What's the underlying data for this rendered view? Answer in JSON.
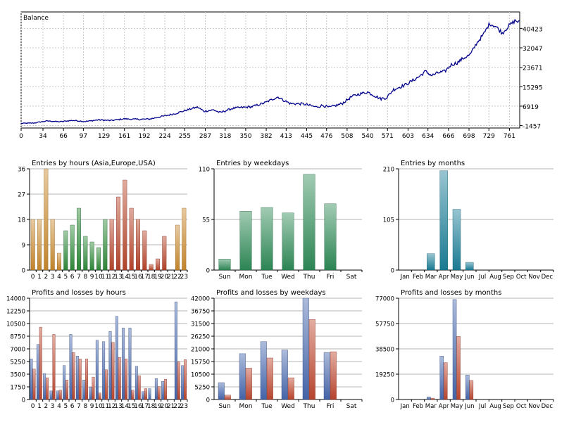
{
  "chart_data": [
    {
      "type": "line",
      "title": "Balance",
      "x_ticks": [
        0,
        34,
        66,
        97,
        129,
        161,
        192,
        224,
        255,
        287,
        318,
        350,
        382,
        413,
        445,
        476,
        508,
        540,
        571,
        603,
        634,
        666,
        698,
        729,
        761
      ],
      "y_ticks": [
        -1457,
        6919,
        15295,
        23671,
        32047,
        40423
      ],
      "xlim": [
        0,
        777
      ],
      "ylim": [
        -2500,
        47500
      ],
      "axis_position": "right",
      "grid": true,
      "color": "#00008b",
      "anchors": [
        [
          0,
          -500
        ],
        [
          20,
          -350
        ],
        [
          40,
          550
        ],
        [
          60,
          200
        ],
        [
          80,
          780
        ],
        [
          100,
          300
        ],
        [
          120,
          1000
        ],
        [
          140,
          700
        ],
        [
          160,
          1450
        ],
        [
          180,
          1220
        ],
        [
          200,
          1350
        ],
        [
          220,
          2500
        ],
        [
          240,
          3700
        ],
        [
          265,
          5800
        ],
        [
          275,
          6500
        ],
        [
          285,
          4700
        ],
        [
          300,
          5300
        ],
        [
          310,
          4100
        ],
        [
          330,
          6000
        ],
        [
          360,
          6700
        ],
        [
          380,
          8400
        ],
        [
          400,
          10900
        ],
        [
          410,
          9300
        ],
        [
          420,
          8000
        ],
        [
          440,
          7900
        ],
        [
          460,
          6500
        ],
        [
          470,
          7300
        ],
        [
          480,
          6300
        ],
        [
          500,
          8000
        ],
        [
          515,
          11000
        ],
        [
          525,
          12000
        ],
        [
          540,
          13000
        ],
        [
          560,
          10100
        ],
        [
          570,
          10600
        ],
        [
          580,
          14000
        ],
        [
          600,
          16300
        ],
        [
          610,
          17900
        ],
        [
          620,
          19600
        ],
        [
          630,
          21900
        ],
        [
          640,
          20100
        ],
        [
          650,
          21300
        ],
        [
          660,
          21800
        ],
        [
          670,
          24700
        ],
        [
          680,
          25700
        ],
        [
          690,
          27700
        ],
        [
          700,
          29100
        ],
        [
          710,
          34100
        ],
        [
          720,
          37600
        ],
        [
          730,
          42500
        ],
        [
          740,
          41200
        ],
        [
          750,
          38400
        ],
        [
          760,
          41500
        ],
        [
          770,
          43800
        ],
        [
          777,
          43000
        ]
      ]
    },
    {
      "type": "bar",
      "title": "Entries by hours (Asia,Europe,USA)",
      "categories": [
        "0",
        "1",
        "2",
        "3",
        "4",
        "5",
        "6",
        "7",
        "8",
        "9",
        "10",
        "11",
        "12",
        "13",
        "14",
        "15",
        "16",
        "17",
        "18",
        "19",
        "20",
        "21",
        "22",
        "23"
      ],
      "values": [
        18,
        18,
        36,
        18,
        6,
        14,
        16,
        22,
        12,
        10,
        8,
        18,
        18,
        26,
        32,
        22,
        18,
        14,
        2,
        4,
        12,
        0,
        16,
        22
      ],
      "colors": [
        "#cc8a2c",
        "#cc8a2c",
        "#cc8a2c",
        "#cc8a2c",
        "#cc8a2c",
        "#2e8b3a",
        "#2e8b3a",
        "#2e8b3a",
        "#2e8b3a",
        "#2e8b3a",
        "#2e8b3a",
        "#2e8b3a",
        "#b9452a",
        "#b9452a",
        "#b9452a",
        "#b9452a",
        "#b9452a",
        "#b9452a",
        "#b9452a",
        "#b9452a",
        "#b9452a",
        "#cc8a2c",
        "#cc8a2c",
        "#cc8a2c"
      ],
      "y_ticks": [
        0,
        9,
        18,
        27,
        36
      ],
      "ylim": [
        0,
        36
      ]
    },
    {
      "type": "bar",
      "title": "Entries by weekdays",
      "categories": [
        "Sun",
        "Mon",
        "Tue",
        "Wed",
        "Thu",
        "Fri",
        "Sat"
      ],
      "values": [
        12,
        64,
        68,
        62,
        104,
        72,
        0
      ],
      "color": "#2e8b57",
      "y_ticks": [
        0,
        55,
        110
      ],
      "ylim": [
        0,
        110
      ]
    },
    {
      "type": "bar",
      "title": "Entries by months",
      "categories": [
        "Jan",
        "Feb",
        "Mar",
        "Apr",
        "May",
        "Jun",
        "Jul",
        "Aug",
        "Sep",
        "Oct",
        "Nov",
        "Dec"
      ],
      "values": [
        0,
        0,
        34,
        206,
        126,
        16,
        0,
        0,
        0,
        0,
        0,
        0
      ],
      "color": "#1a7f99",
      "y_ticks": [
        0,
        105,
        210
      ],
      "ylim": [
        0,
        210
      ]
    },
    {
      "type": "bar",
      "title": "Profits and losses by hours",
      "categories": [
        "0",
        "1",
        "2",
        "3",
        "4",
        "5",
        "6",
        "7",
        "8",
        "9",
        "10",
        "11",
        "12",
        "13",
        "14",
        "15",
        "16",
        "17",
        "18",
        "19",
        "20",
        "21",
        "22",
        "23"
      ],
      "series": [
        {
          "values": [
            5600,
            7600,
            3600,
            1200,
            1200,
            4700,
            9000,
            6000,
            2700,
            1700,
            8200,
            8000,
            9400,
            11500,
            9900,
            9900,
            4600,
            1100,
            1500,
            2900,
            2500,
            0,
            13500,
            4700
          ],
          "color": "#4668b0"
        },
        {
          "values": [
            4200,
            10000,
            3000,
            9000,
            1300,
            2700,
            6500,
            5600,
            5600,
            3100,
            900,
            4100,
            7900,
            5800,
            5600,
            1300,
            3300,
            1500,
            0,
            1800,
            2800,
            0,
            5200,
            5500
          ],
          "color": "#c0462f"
        }
      ],
      "y_ticks": [
        0,
        1750,
        3500,
        5250,
        7000,
        8750,
        10500,
        12250,
        14000
      ],
      "ylim": [
        0,
        14000
      ]
    },
    {
      "type": "bar",
      "title": "Profits and losses by weekdays",
      "categories": [
        "Sun",
        "Mon",
        "Tue",
        "Wed",
        "Thu",
        "Fri",
        "Sat"
      ],
      "series": [
        {
          "values": [
            7000,
            19000,
            24000,
            20500,
            42000,
            19500,
            0
          ],
          "color": "#4668b0"
        },
        {
          "values": [
            1800,
            13000,
            17200,
            9000,
            33200,
            19800,
            0
          ],
          "color": "#c0462f"
        }
      ],
      "y_ticks": [
        0,
        5250,
        10500,
        15750,
        21000,
        26250,
        31500,
        36750,
        42000
      ],
      "ylim": [
        0,
        42000
      ]
    },
    {
      "type": "bar",
      "title": "Profits and losses by months",
      "categories": [
        "Jan",
        "Feb",
        "Mar",
        "Apr",
        "May",
        "Jun",
        "Jul",
        "Aug",
        "Sep",
        "Oct",
        "Nov",
        "Dec"
      ],
      "series": [
        {
          "values": [
            0,
            0,
            2000,
            33000,
            76000,
            18500,
            0,
            0,
            0,
            0,
            0,
            0
          ],
          "color": "#4668b0"
        },
        {
          "values": [
            0,
            0,
            1000,
            28000,
            48000,
            14500,
            0,
            0,
            0,
            0,
            0,
            0
          ],
          "color": "#c0462f"
        }
      ],
      "y_ticks": [
        0,
        19250,
        38500,
        57750,
        77000
      ],
      "ylim": [
        0,
        77000
      ]
    }
  ]
}
